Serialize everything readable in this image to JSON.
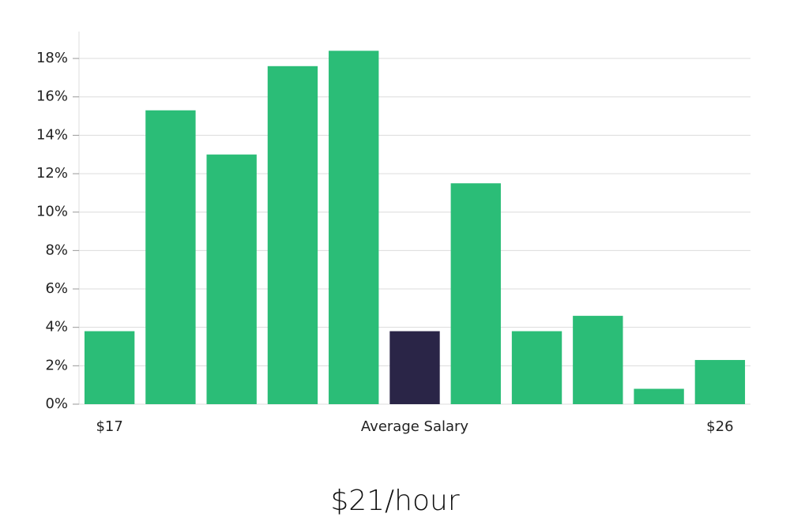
{
  "chart_data": {
    "type": "bar",
    "categories": [
      "$17",
      null,
      null,
      null,
      null,
      "Average Salary",
      null,
      null,
      null,
      null,
      "$26"
    ],
    "values": [
      3.8,
      15.3,
      13.0,
      17.6,
      18.4,
      3.8,
      11.5,
      3.8,
      4.6,
      0.8,
      2.3
    ],
    "colors": [
      "#2bbd77",
      "#2bbd77",
      "#2bbd77",
      "#2bbd77",
      "#2bbd77",
      "#2a2547",
      "#2bbd77",
      "#2bbd77",
      "#2bbd77",
      "#2bbd77",
      "#2bbd77"
    ],
    "ylim": [
      0,
      19.4
    ],
    "yticks": [
      {
        "value": 0,
        "label": "0%"
      },
      {
        "value": 2,
        "label": "2%"
      },
      {
        "value": 4,
        "label": "4%"
      },
      {
        "value": 6,
        "label": "6%"
      },
      {
        "value": 8,
        "label": "8%"
      },
      {
        "value": 10,
        "label": "10%"
      },
      {
        "value": 12,
        "label": "12%"
      },
      {
        "value": 14,
        "label": "14%"
      },
      {
        "value": 16,
        "label": "16%"
      },
      {
        "value": 18,
        "label": "18%"
      }
    ],
    "grid": true,
    "subtitle": "$21/hour"
  }
}
